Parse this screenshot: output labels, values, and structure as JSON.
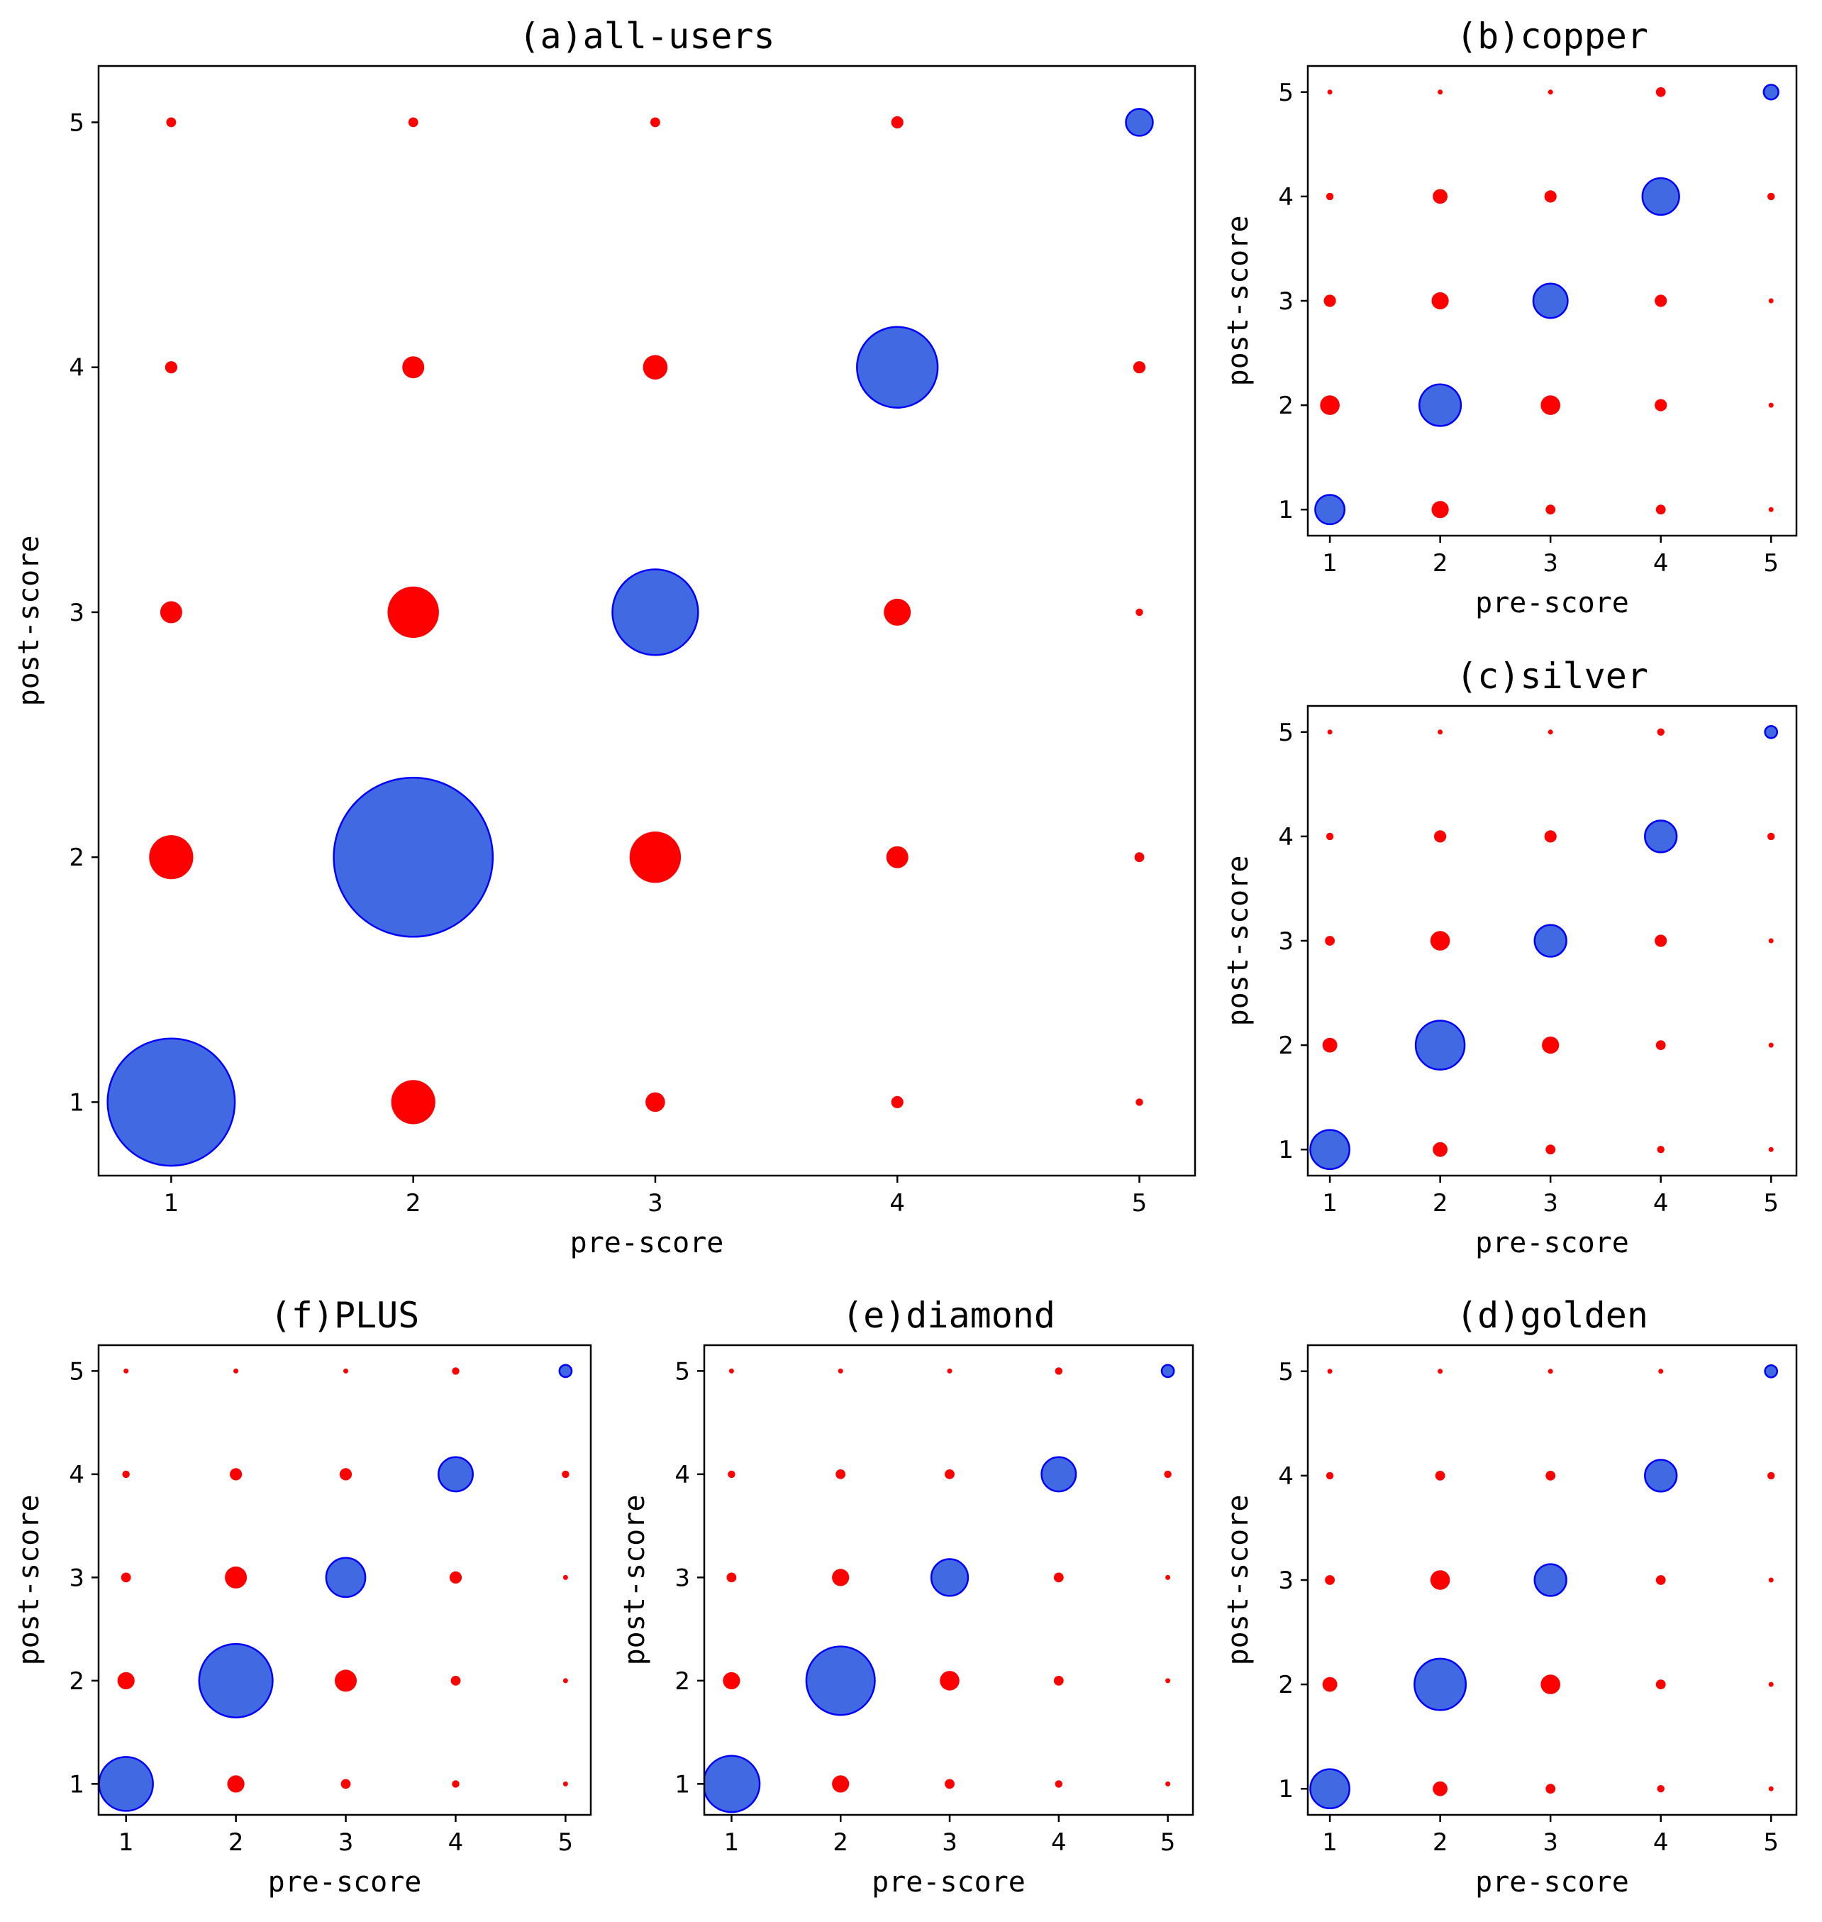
{
  "colors": {
    "diagonal": "#4169E1",
    "diagonal_edge": "#0000FF",
    "off_diagonal": "#FF0000"
  },
  "chart_data": [
    {
      "id": "a",
      "type": "scatter",
      "title": "(a)all-users",
      "xlabel": "pre-score",
      "ylabel": "post-score",
      "x_ticks": [
        "1",
        "2",
        "3",
        "4",
        "5"
      ],
      "y_ticks": [
        "1",
        "2",
        "3",
        "4",
        "5"
      ],
      "xlim": [
        0.7,
        5.23
      ],
      "ylim": [
        0.7,
        5.23
      ],
      "size_unit": "bubble size = relative count (radius)",
      "sizes_by_post_row": [
        [
          52,
          18,
          8,
          5,
          3
        ],
        [
          18,
          65,
          21,
          9,
          4
        ],
        [
          9,
          21,
          35,
          11,
          3
        ],
        [
          5,
          9,
          10,
          33,
          5
        ],
        [
          4,
          4,
          4,
          5,
          11
        ]
      ]
    },
    {
      "id": "b",
      "type": "scatter",
      "title": "(b)copper",
      "xlabel": "pre-score",
      "ylabel": "post-score",
      "x_ticks": [
        "1",
        "2",
        "3",
        "4",
        "5"
      ],
      "y_ticks": [
        "1",
        "2",
        "3",
        "4",
        "5"
      ],
      "xlim": [
        0.8,
        5.23
      ],
      "ylim": [
        0.75,
        5.25
      ],
      "size_unit": "bubble size = relative count (radius)",
      "sizes_by_post_row": [
        [
          12,
          7,
          4,
          4,
          2
        ],
        [
          8,
          17,
          8,
          5,
          2
        ],
        [
          5,
          7,
          14,
          5,
          2
        ],
        [
          3,
          6,
          5,
          15,
          3
        ],
        [
          2,
          2,
          2,
          4,
          6
        ]
      ]
    },
    {
      "id": "c",
      "type": "scatter",
      "title": "(c)silver",
      "xlabel": "pre-score",
      "ylabel": "post-score",
      "x_ticks": [
        "1",
        "2",
        "3",
        "4",
        "5"
      ],
      "y_ticks": [
        "1",
        "2",
        "3",
        "4",
        "5"
      ],
      "xlim": [
        0.8,
        5.23
      ],
      "ylim": [
        0.75,
        5.25
      ],
      "size_unit": "bubble size = relative count (radius)",
      "sizes_by_post_row": [
        [
          16,
          6,
          4,
          3,
          2
        ],
        [
          6,
          20,
          7,
          4,
          2
        ],
        [
          4,
          8,
          13,
          5,
          2
        ],
        [
          3,
          5,
          5,
          13,
          3
        ],
        [
          2,
          2,
          2,
          3,
          5
        ]
      ]
    },
    {
      "id": "d",
      "type": "scatter",
      "title": "(d)golden",
      "xlabel": "pre-score",
      "ylabel": "post-score",
      "x_ticks": [
        "1",
        "2",
        "3",
        "4",
        "5"
      ],
      "y_ticks": [
        "1",
        "2",
        "3",
        "4",
        "5"
      ],
      "xlim": [
        0.8,
        5.23
      ],
      "ylim": [
        0.75,
        5.25
      ],
      "size_unit": "bubble size = relative count (radius)",
      "sizes_by_post_row": [
        [
          16,
          6,
          4,
          3,
          2
        ],
        [
          6,
          21,
          8,
          4,
          2
        ],
        [
          4,
          8,
          13,
          4,
          2
        ],
        [
          3,
          4,
          4,
          13,
          3
        ],
        [
          2,
          2,
          2,
          2,
          5
        ]
      ]
    },
    {
      "id": "e",
      "type": "scatter",
      "title": "(e)diamond",
      "xlabel": "pre-score",
      "ylabel": "post-score",
      "x_ticks": [
        "1",
        "2",
        "3",
        "4",
        "5"
      ],
      "y_ticks": [
        "1",
        "2",
        "3",
        "4",
        "5"
      ],
      "xlim": [
        0.75,
        5.23
      ],
      "ylim": [
        0.7,
        5.25
      ],
      "size_unit": "bubble size = relative count (radius)",
      "sizes_by_post_row": [
        [
          23,
          7,
          4,
          3,
          2
        ],
        [
          7,
          28,
          8,
          4,
          2
        ],
        [
          4,
          7,
          15,
          4,
          2
        ],
        [
          3,
          4,
          4,
          14,
          3
        ],
        [
          2,
          2,
          2,
          3,
          5
        ]
      ]
    },
    {
      "id": "f",
      "type": "scatter",
      "title": "(f)PLUS",
      "xlabel": "pre-score",
      "ylabel": "post-score",
      "x_ticks": [
        "1",
        "2",
        "3",
        "4",
        "5"
      ],
      "y_ticks": [
        "1",
        "2",
        "3",
        "4",
        "5"
      ],
      "xlim": [
        0.75,
        5.23
      ],
      "ylim": [
        0.7,
        5.25
      ],
      "size_unit": "bubble size = relative count (radius)",
      "sizes_by_post_row": [
        [
          22,
          7,
          4,
          3,
          2
        ],
        [
          7,
          30,
          9,
          4,
          2
        ],
        [
          4,
          9,
          16,
          5,
          2
        ],
        [
          3,
          5,
          5,
          14,
          3
        ],
        [
          2,
          2,
          2,
          3,
          5
        ]
      ]
    }
  ]
}
